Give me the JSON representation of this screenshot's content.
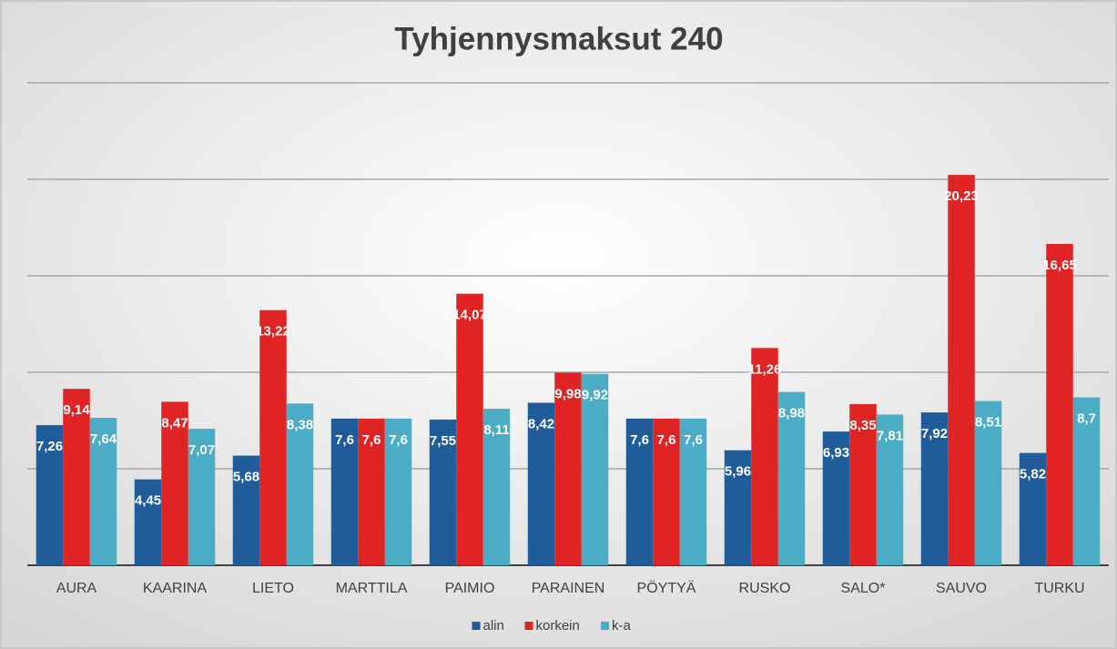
{
  "chart_data": {
    "type": "bar",
    "title": "Tyhjennysmaksut 240",
    "categories": [
      "AURA",
      "KAARINA",
      "LIETO",
      "MARTTILA",
      "PAIMIO",
      "PARAINEN",
      "PÖYTYÄ",
      "RUSKO",
      "SALO*",
      "SAUVO",
      "TURKU"
    ],
    "series": [
      {
        "name": "alin",
        "color": "#1f5c99",
        "values": [
          7.26,
          4.45,
          5.68,
          7.6,
          7.55,
          8.42,
          7.6,
          5.96,
          6.93,
          7.92,
          5.82
        ],
        "value_labels": [
          "7,26",
          "4,45",
          "5,68",
          "7,6",
          "7,55",
          "8,42",
          "7,6",
          "5,96",
          "6,93",
          "7,92",
          "5,82"
        ]
      },
      {
        "name": "korkein",
        "color": "#e02424",
        "values": [
          9.14,
          8.47,
          13.22,
          7.6,
          14.07,
          9.98,
          7.6,
          11.26,
          8.35,
          20.23,
          16.65
        ],
        "value_labels": [
          "9,14",
          "8,47",
          "13,22",
          "7,6",
          "14,07",
          "9,98",
          "7,6",
          "11,26",
          "8,35",
          "20,23",
          "16,65"
        ]
      },
      {
        "name": "k-a",
        "color": "#4bacc6",
        "values": [
          7.64,
          7.07,
          8.38,
          7.6,
          8.11,
          9.92,
          7.6,
          8.98,
          7.81,
          8.51,
          8.7
        ],
        "value_labels": [
          "7,64",
          "7,07",
          "8,38",
          "7,6",
          "8,11",
          "9,92",
          "7,6",
          "8,98",
          "7,81",
          "8,51",
          "8,7"
        ]
      }
    ],
    "ylim": [
      0,
      25
    ],
    "yticks": [
      0,
      5,
      10,
      15,
      20,
      25
    ],
    "grid": true,
    "legend": "bottom"
  }
}
